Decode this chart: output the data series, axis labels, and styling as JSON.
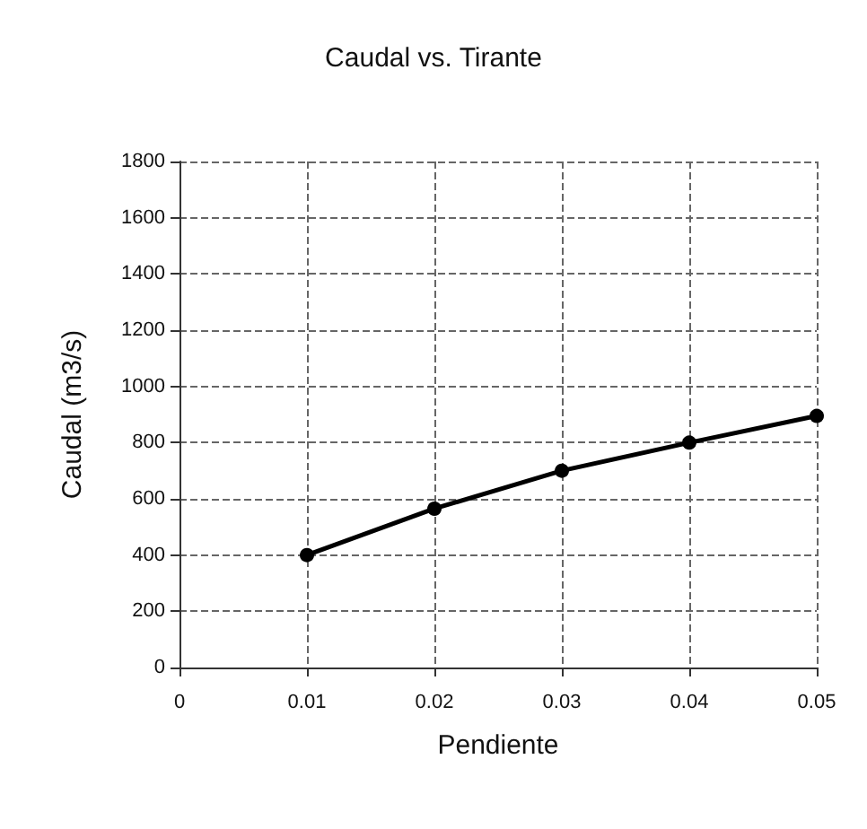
{
  "chart_data": {
    "type": "line",
    "title": "Caudal vs. Tirante",
    "xlabel": "Pendiente",
    "ylabel": "Caudal (m3/s)",
    "x": [
      0.01,
      0.02,
      0.03,
      0.04,
      0.05
    ],
    "series": [
      {
        "color": "#000000",
        "values": [
          400,
          565,
          700,
          800,
          895
        ]
      }
    ],
    "xlim": [
      0,
      0.05
    ],
    "xticks": [
      0,
      0.01,
      0.02,
      0.03,
      0.04,
      0.05
    ],
    "ylim": [
      0,
      1800
    ],
    "yticks": [
      0,
      200,
      400,
      600,
      800,
      1000,
      1200,
      1400,
      1600,
      1800
    ],
    "grid": true,
    "marker": "circle",
    "line_style": "solid"
  }
}
